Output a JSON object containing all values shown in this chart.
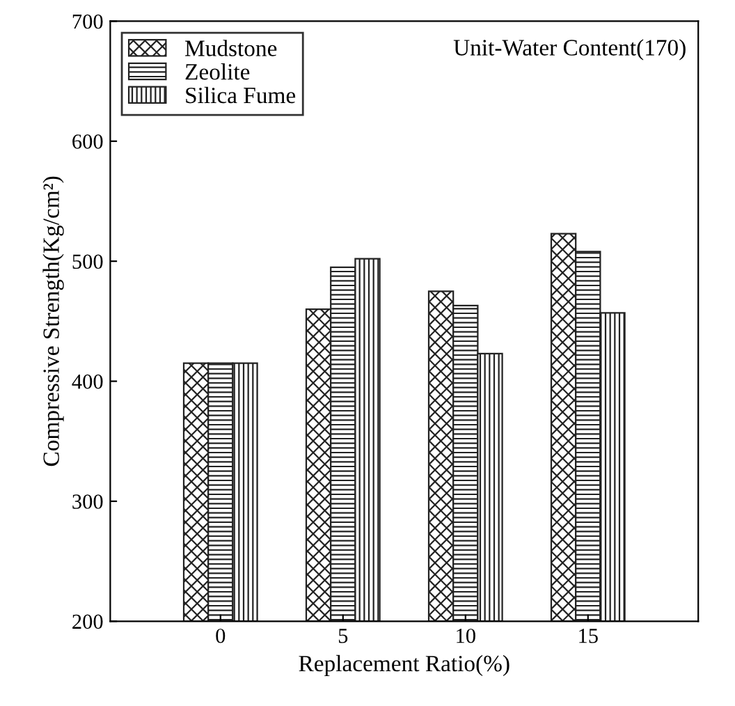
{
  "chart_data": {
    "type": "bar",
    "xlabel": "Replacement Ratio(%)",
    "ylabel": "Compressive Strength(Kg/cm²)",
    "categories": [
      "0",
      "5",
      "10",
      "15"
    ],
    "series": [
      {
        "name": "Mudstone",
        "color": "#222222",
        "values": [
          415,
          460,
          475,
          523
        ]
      },
      {
        "name": "Zeolite",
        "color": "#222222",
        "values": [
          415,
          495,
          463,
          508
        ]
      },
      {
        "name": "Silica Fume",
        "color": "#222222",
        "values": [
          415,
          502,
          423,
          457
        ]
      }
    ],
    "ylim": [
      200,
      700
    ],
    "yticks": [
      200,
      300,
      400,
      500,
      600,
      700
    ],
    "grid": false,
    "legend": "top left",
    "annotations": [
      "Unit-Water Content(170)"
    ]
  }
}
